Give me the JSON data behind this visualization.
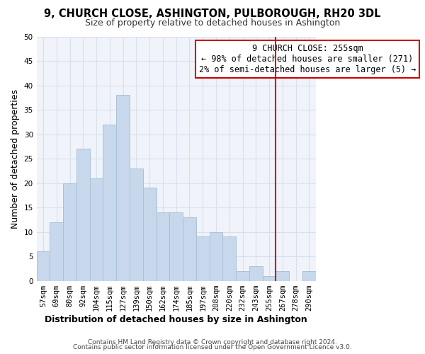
{
  "title": "9, CHURCH CLOSE, ASHINGTON, PULBOROUGH, RH20 3DL",
  "subtitle": "Size of property relative to detached houses in Ashington",
  "xlabel": "Distribution of detached houses by size in Ashington",
  "ylabel": "Number of detached properties",
  "bar_labels": [
    "57sqm",
    "69sqm",
    "80sqm",
    "92sqm",
    "104sqm",
    "115sqm",
    "127sqm",
    "139sqm",
    "150sqm",
    "162sqm",
    "174sqm",
    "185sqm",
    "197sqm",
    "208sqm",
    "220sqm",
    "232sqm",
    "243sqm",
    "255sqm",
    "267sqm",
    "278sqm",
    "290sqm"
  ],
  "bar_values": [
    6,
    12,
    20,
    27,
    21,
    32,
    38,
    23,
    19,
    14,
    14,
    13,
    9,
    10,
    9,
    2,
    3,
    1,
    2,
    0,
    2
  ],
  "bar_color": "#c8d8ec",
  "bar_edge_color": "#a8c0d8",
  "grid_color": "#d8e0ec",
  "vline_color": "#cc0000",
  "annotation_title": "9 CHURCH CLOSE: 255sqm",
  "annotation_line1": "← 98% of detached houses are smaller (271)",
  "annotation_line2": "2% of semi-detached houses are larger (5) →",
  "annotation_box_color": "#ffffff",
  "annotation_border_color": "#cc0000",
  "bg_color": "#f0f4fa",
  "ylim": [
    0,
    50
  ],
  "yticks": [
    0,
    5,
    10,
    15,
    20,
    25,
    30,
    35,
    40,
    45,
    50
  ],
  "footnote1": "Contains HM Land Registry data © Crown copyright and database right 2024.",
  "footnote2": "Contains public sector information licensed under the Open Government Licence v3.0.",
  "title_fontsize": 10.5,
  "subtitle_fontsize": 9,
  "axis_label_fontsize": 9,
  "tick_fontsize": 7.5,
  "annotation_fontsize": 8.5,
  "footnote_fontsize": 6.5
}
